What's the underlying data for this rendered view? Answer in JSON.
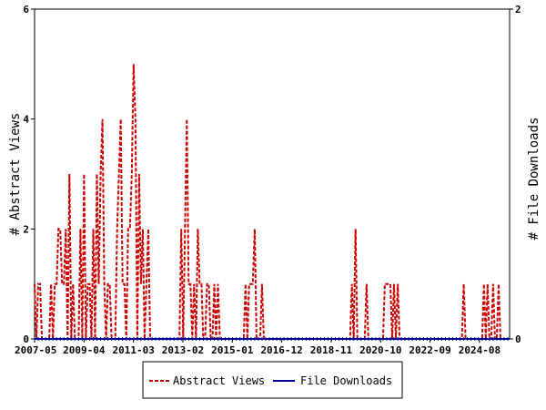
{
  "chart_data": {
    "type": "line",
    "ylabel_left": "# Abstract Views",
    "ylabel_right": "# File Downloads",
    "ylim_left": [
      0,
      6
    ],
    "ylim_right": [
      0,
      2
    ],
    "yticks_left": [
      0,
      2,
      4,
      6
    ],
    "yticks_right": [
      0,
      2
    ],
    "x_range": [
      "2007-05",
      "2025-10"
    ],
    "xtick_labels": [
      "2007-05",
      "2009-04",
      "2011-03",
      "2013-02",
      "2015-01",
      "2016-12",
      "2018-11",
      "2020-10",
      "2022-09",
      "2024-08"
    ],
    "grid": false,
    "legend_position": "bottom",
    "series": [
      {
        "name": "Abstract Views",
        "color": "#cc0000",
        "style": "dashed",
        "axis": "left",
        "values": [
          1,
          0,
          1,
          1,
          0,
          0,
          0,
          0,
          0,
          1,
          0,
          1,
          1,
          2,
          2,
          1,
          1,
          2,
          0,
          3,
          0,
          1,
          0,
          0,
          0,
          2,
          0,
          3,
          0,
          1,
          1,
          0,
          2,
          0,
          3,
          1,
          3,
          4,
          1,
          0,
          1,
          1,
          0,
          0,
          0,
          2,
          3,
          4,
          1,
          1,
          0,
          2,
          2,
          3,
          5,
          4,
          0,
          3,
          1,
          2,
          0,
          1,
          2,
          0,
          0,
          0,
          0,
          0,
          0,
          0,
          0,
          0,
          0,
          0,
          0,
          0,
          0,
          0,
          0,
          0,
          2,
          0,
          2,
          4,
          1,
          1,
          0,
          1,
          0,
          2,
          1,
          1,
          0,
          0,
          1,
          1,
          0,
          0,
          1,
          0,
          1,
          0,
          0,
          0,
          0,
          0,
          0,
          0,
          0,
          0,
          0,
          0,
          0,
          0,
          0,
          1,
          0,
          1,
          1,
          1,
          2,
          0,
          0,
          0,
          1,
          0,
          0,
          0,
          0,
          0,
          0,
          0,
          0,
          0,
          0,
          0,
          0,
          0,
          0,
          0,
          0,
          0,
          0,
          0,
          0,
          0,
          0,
          0,
          0,
          0,
          0,
          0,
          0,
          0,
          0,
          0,
          0,
          0,
          0,
          0,
          0,
          0,
          0,
          0,
          0,
          0,
          0,
          0,
          0,
          0,
          0,
          0,
          0,
          1,
          0,
          2,
          0,
          0,
          0,
          0,
          0,
          1,
          0,
          0,
          0,
          0,
          0,
          0,
          0,
          0,
          0,
          1,
          1,
          1,
          1,
          0,
          1,
          0,
          1,
          0,
          0,
          0,
          0,
          0,
          0,
          0,
          0,
          0,
          0,
          0,
          0,
          0,
          0,
          0,
          0,
          0,
          0,
          0,
          0,
          0,
          0,
          0,
          0,
          0,
          0,
          0,
          0,
          0,
          0,
          0,
          0,
          0,
          0,
          0,
          1,
          0,
          0,
          0,
          0,
          0,
          0,
          0,
          0,
          0,
          0,
          1,
          0,
          1,
          0,
          0,
          1,
          0,
          0,
          1,
          0,
          0,
          0,
          0,
          0,
          0
        ]
      },
      {
        "name": "File Downloads",
        "color": "#000099",
        "style": "solid",
        "axis": "right",
        "values": [
          0,
          0
        ]
      }
    ]
  }
}
